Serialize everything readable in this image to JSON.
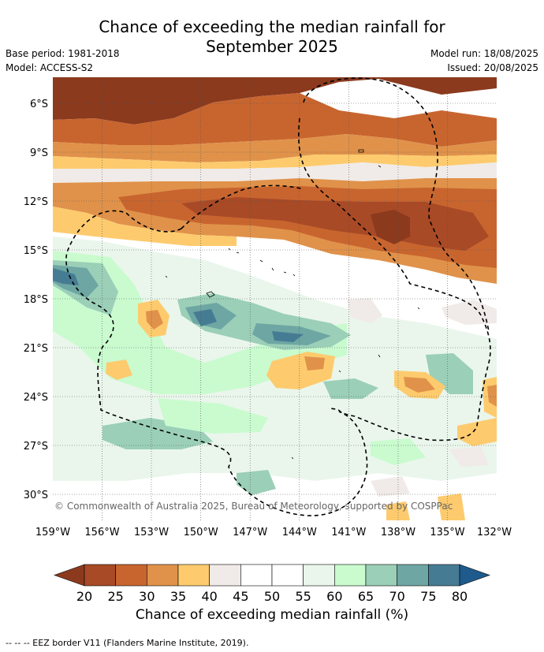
{
  "title_line1": "Chance of exceeding the median rainfall for",
  "title_line2": "September 2025",
  "base_period": "Base period: 1981-2018",
  "model": "Model: ACCESS-S2",
  "model_run": "Model run: 18/08/2025",
  "issued": "Issued: 20/08/2025",
  "copyright": "© Commonwealth of Australia 2025, Bureau of Meteorology, supported by COSPPac",
  "footnote": "--  --  -- EEZ border V11 (Flanders Marine Institute, 2019).",
  "colorbar": {
    "label": "Chance of exceeding median rainfall (%)",
    "ticks": [
      "20",
      "25",
      "30",
      "35",
      "40",
      "45",
      "50",
      "55",
      "60",
      "65",
      "70",
      "75",
      "80"
    ],
    "colors": [
      "#8b3a1e",
      "#a84a26",
      "#c8652f",
      "#e0924a",
      "#fdcb6e",
      "#f0ebe8",
      "#ffffff",
      "#ffffff",
      "#eaf6ec",
      "#c9fbcf",
      "#9bcfb8",
      "#6ea6a3",
      "#467c93",
      "#1e5a8c"
    ]
  },
  "map": {
    "lat_ticks": [
      "6°S",
      "9°S",
      "12°S",
      "15°S",
      "18°S",
      "21°S",
      "24°S",
      "27°S",
      "30°S"
    ],
    "lon_ticks": [
      "159°W",
      "156°W",
      "153°W",
      "150°W",
      "147°W",
      "144°W",
      "141°W",
      "138°W",
      "135°W",
      "132°W"
    ],
    "lat_range": [
      4.5,
      31.8
    ],
    "lon_range": [
      -159,
      -132
    ]
  }
}
